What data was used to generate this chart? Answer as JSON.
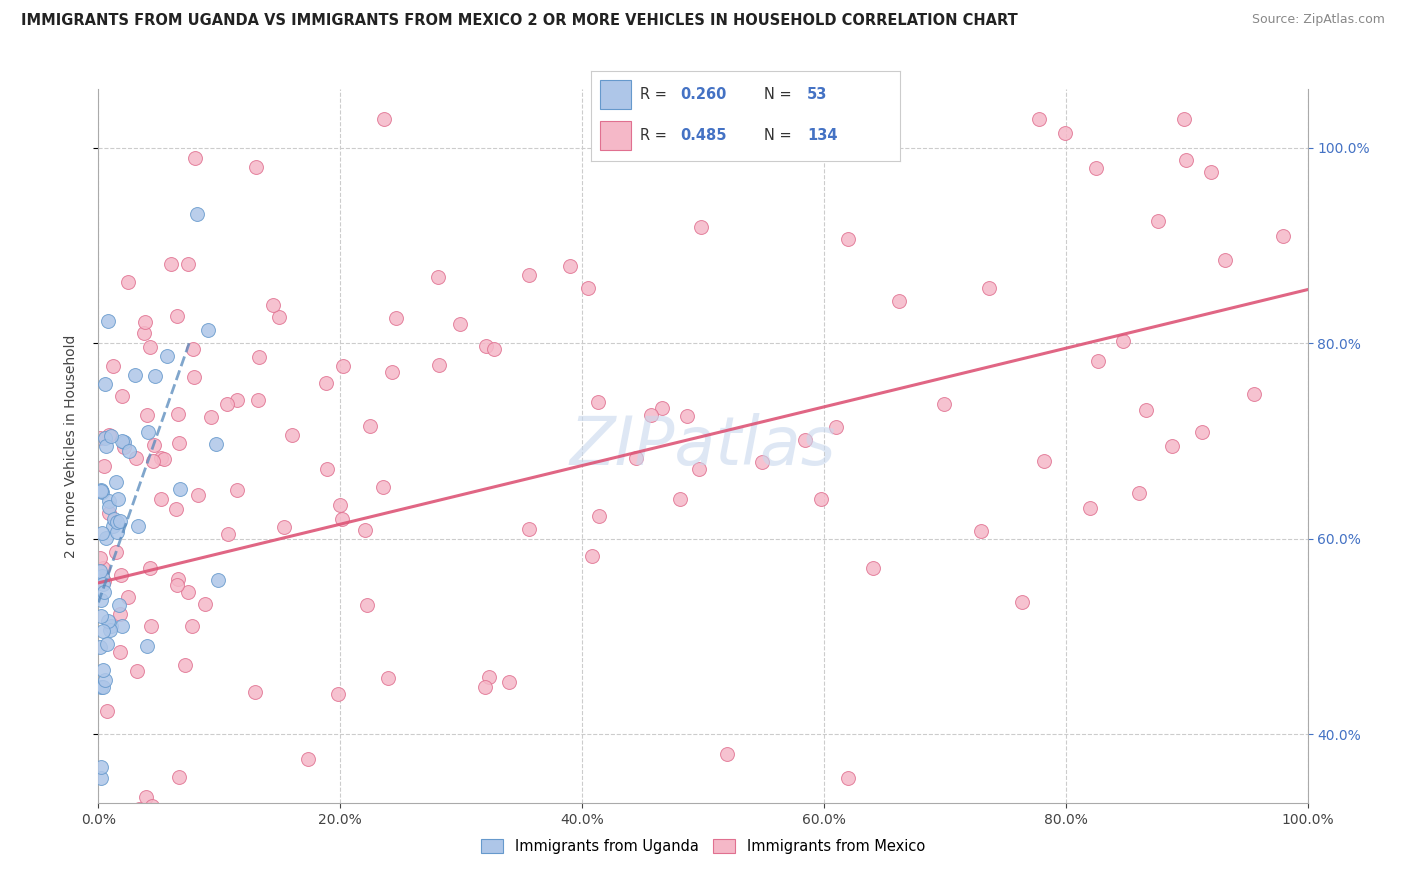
{
  "title": "IMMIGRANTS FROM UGANDA VS IMMIGRANTS FROM MEXICO 2 OR MORE VEHICLES IN HOUSEHOLD CORRELATION CHART",
  "source": "Source: ZipAtlas.com",
  "ylabel": "2 or more Vehicles in Household",
  "r_uganda": 0.26,
  "n_uganda": 53,
  "r_mexico": 0.485,
  "n_mexico": 134,
  "color_uganda": "#aec6e8",
  "color_mexico": "#f5b8c8",
  "edge_uganda": "#6699cc",
  "edge_mexico": "#e07090",
  "trendline_uganda_color": "#5588bb",
  "trendline_mexico_color": "#dd5577",
  "watermark_color": "#c8d8ee",
  "ymin": 0.33,
  "ymax": 1.06,
  "xmin": 0.0,
  "xmax": 1.0,
  "ytick_values": [
    0.4,
    0.6,
    0.8,
    1.0
  ],
  "xtick_values": [
    0.0,
    0.2,
    0.4,
    0.6,
    0.8,
    1.0
  ],
  "mexico_trendline_x0": 0.0,
  "mexico_trendline_y0": 0.555,
  "mexico_trendline_x1": 1.0,
  "mexico_trendline_y1": 0.855,
  "uganda_trendline_x0": 0.0,
  "uganda_trendline_y0": 0.535,
  "uganda_trendline_x1": 0.075,
  "uganda_trendline_y1": 0.8,
  "legend_r1": "0.260",
  "legend_n1": "53",
  "legend_r2": "0.485",
  "legend_n2": "134"
}
